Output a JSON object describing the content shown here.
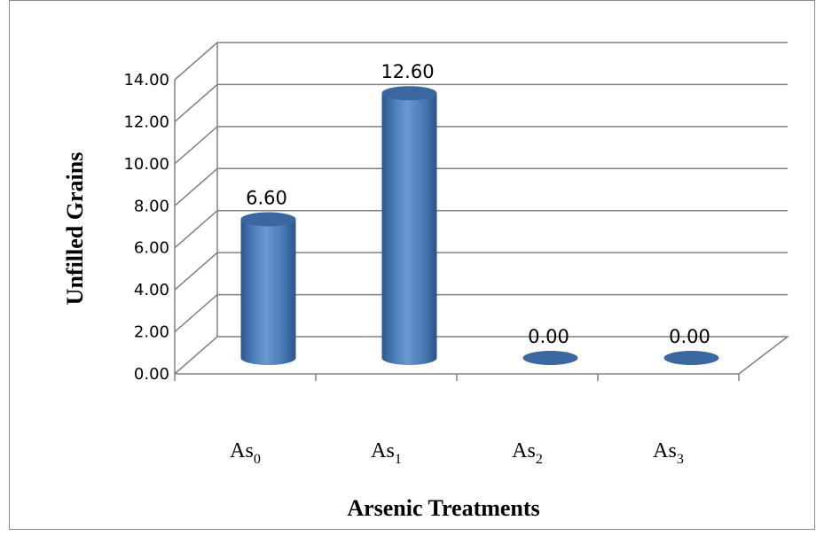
{
  "chart_data": {
    "type": "bar",
    "style": "3d-cylinder",
    "categories": [
      {
        "base": "As",
        "sub": "0"
      },
      {
        "base": "As",
        "sub": "1"
      },
      {
        "base": "As",
        "sub": "2"
      },
      {
        "base": "As",
        "sub": "3"
      }
    ],
    "values": [
      6.6,
      12.6,
      0.0,
      0.0
    ],
    "data_labels": [
      "6.60",
      "12.60",
      "0.00",
      "0.00"
    ],
    "ylabel": "Unfilled  Grains",
    "xlabel": "Arsenic Treatments",
    "ylim": [
      0,
      14
    ],
    "yticks": [
      "0.00",
      "2.00",
      "4.00",
      "6.00",
      "8.00",
      "10.00",
      "12.00",
      "14.00"
    ],
    "grid": true,
    "legend": "none",
    "colors": {
      "bar": "#4f81bd",
      "bar_dark": "#2f5b94",
      "bar_top": "#3a679f",
      "gridline": "#808080"
    }
  }
}
